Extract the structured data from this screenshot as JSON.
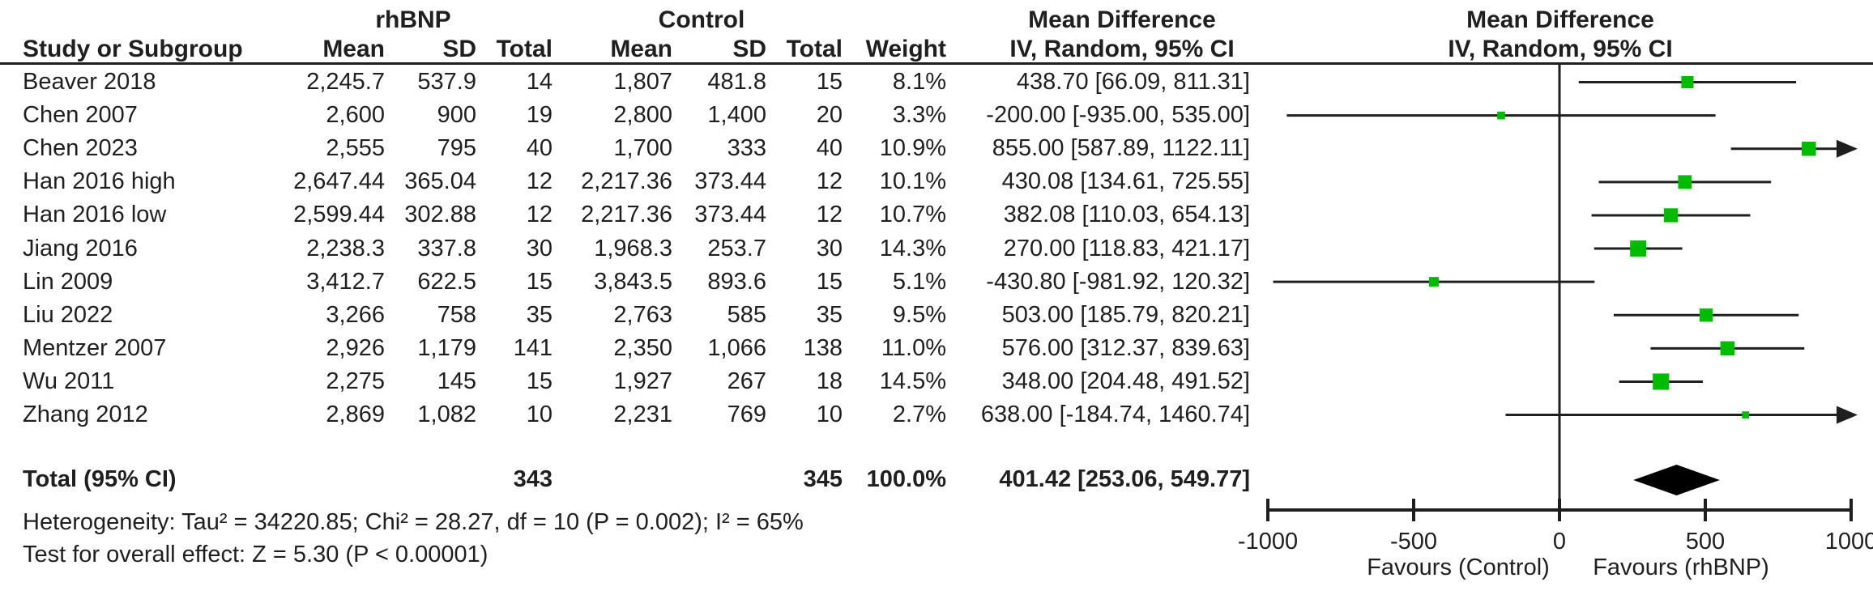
{
  "colors": {
    "ink": "#1f1f1f",
    "marker_green": "#00bc00",
    "diamond_black": "#000000"
  },
  "header": {
    "group_treatment": "rhBNP",
    "group_control": "Control",
    "md_stats_title": "Mean Difference",
    "md_plot_title": "Mean Difference",
    "study_col": "Study or Subgroup",
    "mean_col": "Mean",
    "sd_col": "SD",
    "total_col": "Total",
    "weight_col": "Weight",
    "ci_stats_col": "IV, Random, 95% CI",
    "ci_plot_col": "IV, Random, 95% CI"
  },
  "chart_data": {
    "type": "scatter",
    "variant": "forest-plot-mean-difference",
    "effect_measure": "Mean Difference",
    "model": "IV, Random, 95% CI",
    "x_axis": {
      "min": -1000,
      "max": 1000,
      "ticks": [
        -1000,
        -500,
        0,
        500,
        1000
      ],
      "favours_left": "Favours (Control)",
      "favours_right": "Favours (rhBNP)"
    },
    "studies": [
      {
        "name": "Beaver 2018",
        "t_mean": "2,245.7",
        "t_sd": "537.9",
        "t_total": "14",
        "c_mean": "1,807",
        "c_sd": "481.8",
        "c_total": "15",
        "weight": "8.1%",
        "weight_val": 8.1,
        "ci_text": "438.70 [66.09, 811.31]",
        "est": 438.7,
        "lo": 66.09,
        "hi": 811.31
      },
      {
        "name": "Chen 2007",
        "t_mean": "2,600",
        "t_sd": "900",
        "t_total": "19",
        "c_mean": "2,800",
        "c_sd": "1,400",
        "c_total": "20",
        "weight": "3.3%",
        "weight_val": 3.3,
        "ci_text": "-200.00 [-935.00, 535.00]",
        "est": -200.0,
        "lo": -935.0,
        "hi": 535.0
      },
      {
        "name": "Chen 2023",
        "t_mean": "2,555",
        "t_sd": "795",
        "t_total": "40",
        "c_mean": "1,700",
        "c_sd": "333",
        "c_total": "40",
        "weight": "10.9%",
        "weight_val": 10.9,
        "ci_text": "855.00 [587.89, 1122.11]",
        "est": 855.0,
        "lo": 587.89,
        "hi": 1122.11
      },
      {
        "name": "Han 2016 high",
        "t_mean": "2,647.44",
        "t_sd": "365.04",
        "t_total": "12",
        "c_mean": "2,217.36",
        "c_sd": "373.44",
        "c_total": "12",
        "weight": "10.1%",
        "weight_val": 10.1,
        "ci_text": "430.08 [134.61, 725.55]",
        "est": 430.08,
        "lo": 134.61,
        "hi": 725.55
      },
      {
        "name": "Han 2016 low",
        "t_mean": "2,599.44",
        "t_sd": "302.88",
        "t_total": "12",
        "c_mean": "2,217.36",
        "c_sd": "373.44",
        "c_total": "12",
        "weight": "10.7%",
        "weight_val": 10.7,
        "ci_text": "382.08 [110.03, 654.13]",
        "est": 382.08,
        "lo": 110.03,
        "hi": 654.13
      },
      {
        "name": "Jiang 2016",
        "t_mean": "2,238.3",
        "t_sd": "337.8",
        "t_total": "30",
        "c_mean": "1,968.3",
        "c_sd": "253.7",
        "c_total": "30",
        "weight": "14.3%",
        "weight_val": 14.3,
        "ci_text": "270.00 [118.83, 421.17]",
        "est": 270.0,
        "lo": 118.83,
        "hi": 421.17
      },
      {
        "name": "Lin 2009",
        "t_mean": "3,412.7",
        "t_sd": "622.5",
        "t_total": "15",
        "c_mean": "3,843.5",
        "c_sd": "893.6",
        "c_total": "15",
        "weight": "5.1%",
        "weight_val": 5.1,
        "ci_text": "-430.80 [-981.92, 120.32]",
        "est": -430.8,
        "lo": -981.92,
        "hi": 120.32
      },
      {
        "name": "Liu 2022",
        "t_mean": "3,266",
        "t_sd": "758",
        "t_total": "35",
        "c_mean": "2,763",
        "c_sd": "585",
        "c_total": "35",
        "weight": "9.5%",
        "weight_val": 9.5,
        "ci_text": "503.00 [185.79, 820.21]",
        "est": 503.0,
        "lo": 185.79,
        "hi": 820.21
      },
      {
        "name": "Mentzer 2007",
        "t_mean": "2,926",
        "t_sd": "1,179",
        "t_total": "141",
        "c_mean": "2,350",
        "c_sd": "1,066",
        "c_total": "138",
        "weight": "11.0%",
        "weight_val": 11.0,
        "ci_text": "576.00 [312.37, 839.63]",
        "est": 576.0,
        "lo": 312.37,
        "hi": 839.63
      },
      {
        "name": "Wu 2011",
        "t_mean": "2,275",
        "t_sd": "145",
        "t_total": "15",
        "c_mean": "1,927",
        "c_sd": "267",
        "c_total": "18",
        "weight": "14.5%",
        "weight_val": 14.5,
        "ci_text": "348.00 [204.48, 491.52]",
        "est": 348.0,
        "lo": 204.48,
        "hi": 491.52
      },
      {
        "name": "Zhang 2012",
        "t_mean": "2,869",
        "t_sd": "1,082",
        "t_total": "10",
        "c_mean": "2,231",
        "c_sd": "769",
        "c_total": "10",
        "weight": "2.7%",
        "weight_val": 2.7,
        "ci_text": "638.00 [-184.74, 1460.74]",
        "est": 638.0,
        "lo": -184.74,
        "hi": 1460.74
      }
    ],
    "total": {
      "label": "Total (95% CI)",
      "t_total": "343",
      "c_total": "345",
      "weight": "100.0%",
      "ci_text": "401.42 [253.06, 549.77]",
      "est": 401.42,
      "lo": 253.06,
      "hi": 549.77
    }
  },
  "footer": {
    "heterogeneity": "Heterogeneity: Tau² = 34220.85; Chi² = 28.27, df = 10 (P = 0.002); I² = 65%",
    "overall_effect": "Test for overall effect: Z = 5.30 (P < 0.00001)"
  }
}
